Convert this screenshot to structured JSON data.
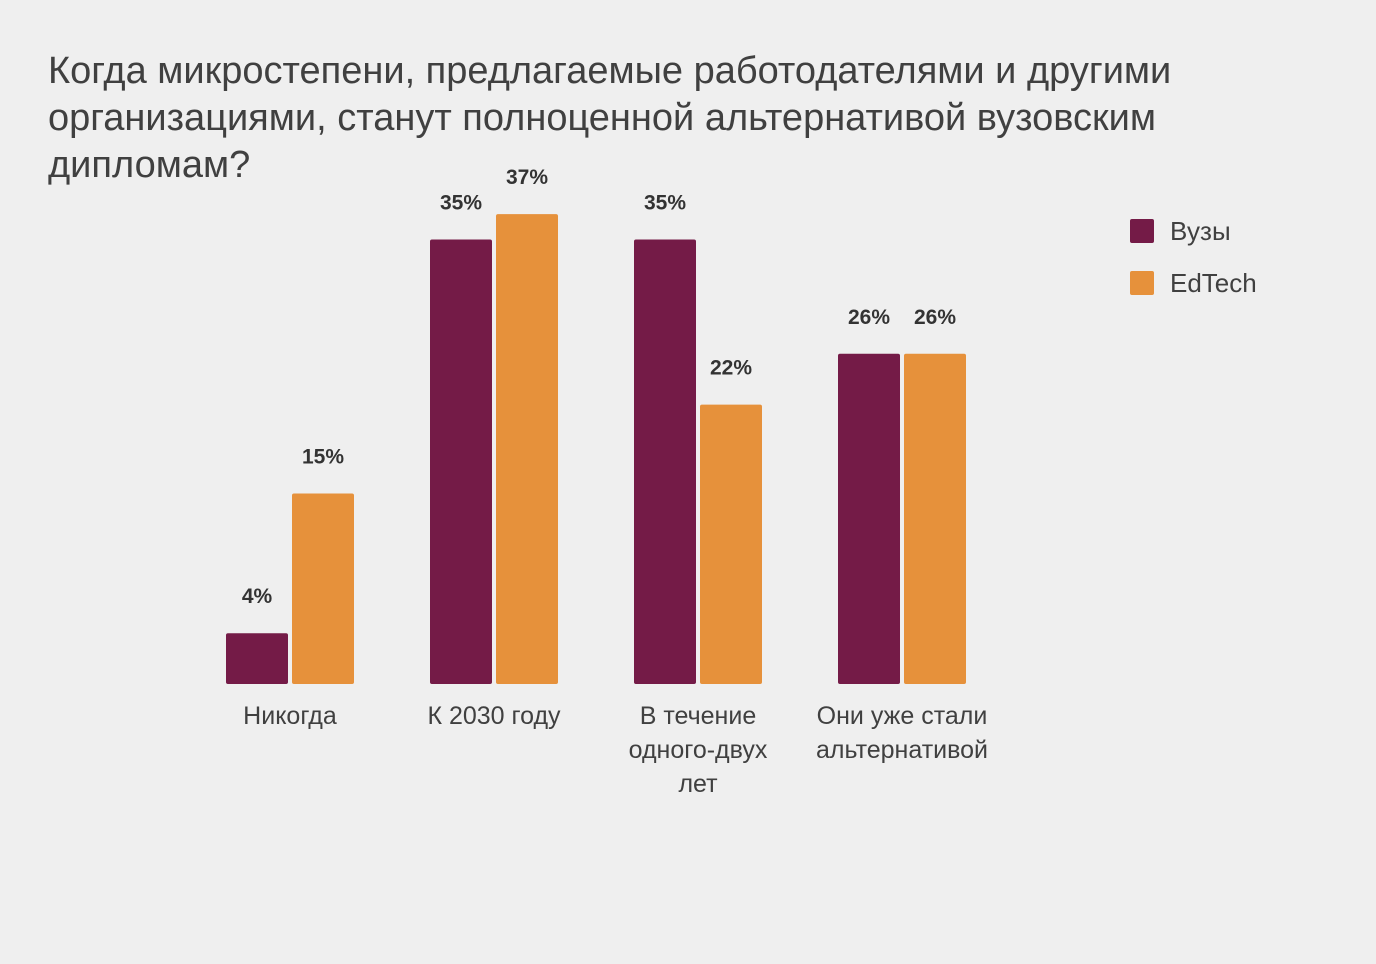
{
  "title": "Когда микростепени, предлагаемые работодателями и другими организациями, станут полноценной альтернативой вузовским дипломам?",
  "legend": [
    {
      "label": "Вузы",
      "color": "#741b47"
    },
    {
      "label": "EdTech",
      "color": "#e6913b"
    }
  ],
  "chart_data": {
    "type": "bar",
    "title": "Когда микростепени, предлагаемые работодателями и другими организациями, станут полноценной альтернативой вузовским дипломам?",
    "categories": [
      [
        "Никогда"
      ],
      [
        "К 2030 году"
      ],
      [
        "В течение",
        "одного-двух",
        "лет"
      ],
      [
        "Они уже стали",
        "альтернативой"
      ]
    ],
    "series": [
      {
        "name": "Вузы",
        "color": "#741b47",
        "values": [
          4,
          35,
          35,
          26
        ]
      },
      {
        "name": "EdTech",
        "color": "#e6913b",
        "values": [
          15,
          37,
          22,
          26
        ]
      }
    ],
    "value_suffix": "%",
    "ylim": [
      0,
      37
    ],
    "grid": false,
    "legend_position": "top-right"
  }
}
